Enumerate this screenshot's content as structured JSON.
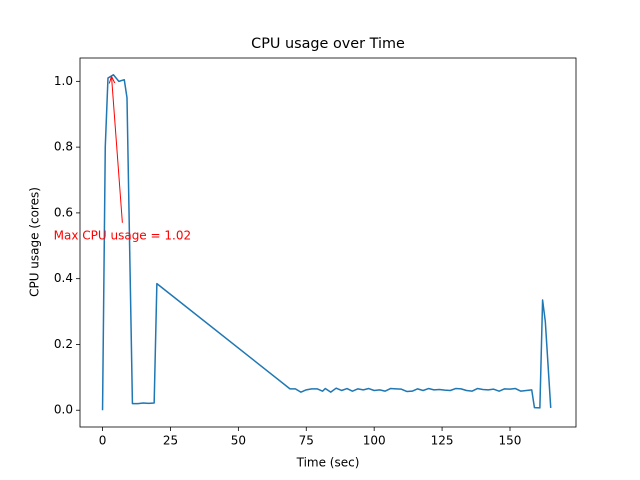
{
  "chart_data": {
    "type": "line",
    "title": "CPU usage over Time",
    "x_label": "Time (sec)",
    "y_label": "CPU usage (cores)",
    "color": "#1f77b4",
    "x": [
      0,
      1,
      2,
      4,
      6,
      8,
      9,
      11,
      13,
      15,
      17,
      19,
      20,
      69,
      71,
      73,
      75,
      77,
      79,
      81,
      82,
      84,
      86,
      88,
      90,
      92,
      94,
      96,
      98,
      100,
      102,
      104,
      106,
      108,
      110,
      112,
      114,
      116,
      118,
      120,
      122,
      124,
      126,
      128,
      130,
      132,
      134,
      136,
      138,
      140,
      142,
      144,
      146,
      148,
      150,
      152,
      154,
      156,
      158,
      159,
      161,
      162,
      163,
      165
    ],
    "values": [
      0,
      0.8,
      1.01,
      1.02,
      1.0,
      1.005,
      0.95,
      0.02,
      0.02,
      0.022,
      0.021,
      0.022,
      0.385,
      0.065,
      0.065,
      0.055,
      0.062,
      0.065,
      0.065,
      0.058,
      0.066,
      0.055,
      0.067,
      0.06,
      0.066,
      0.058,
      0.065,
      0.062,
      0.066,
      0.06,
      0.062,
      0.058,
      0.066,
      0.065,
      0.064,
      0.057,
      0.058,
      0.065,
      0.06,
      0.066,
      0.062,
      0.063,
      0.061,
      0.06,
      0.066,
      0.065,
      0.06,
      0.058,
      0.066,
      0.063,
      0.062,
      0.064,
      0.058,
      0.065,
      0.064,
      0.066,
      0.058,
      0.06,
      0.062,
      0.008,
      0.007,
      0.335,
      0.27,
      0.007
    ],
    "xlim": [
      -8.3,
      174.3
    ],
    "xticks": [
      0,
      25,
      50,
      75,
      100,
      125,
      150
    ],
    "ylim": [
      -0.051,
      1.071
    ],
    "yticks": [
      {
        "value": 0,
        "label": "0.0"
      },
      0.2,
      0.4,
      0.6,
      0.8,
      {
        "value": 1,
        "label": "1.0"
      }
    ],
    "annotation": {
      "text": "Max CPU usage = 1.02",
      "xy": [
        3.3,
        1.015
      ],
      "xytext": [
        7.3,
        0.57
      ],
      "color": "red"
    }
  }
}
